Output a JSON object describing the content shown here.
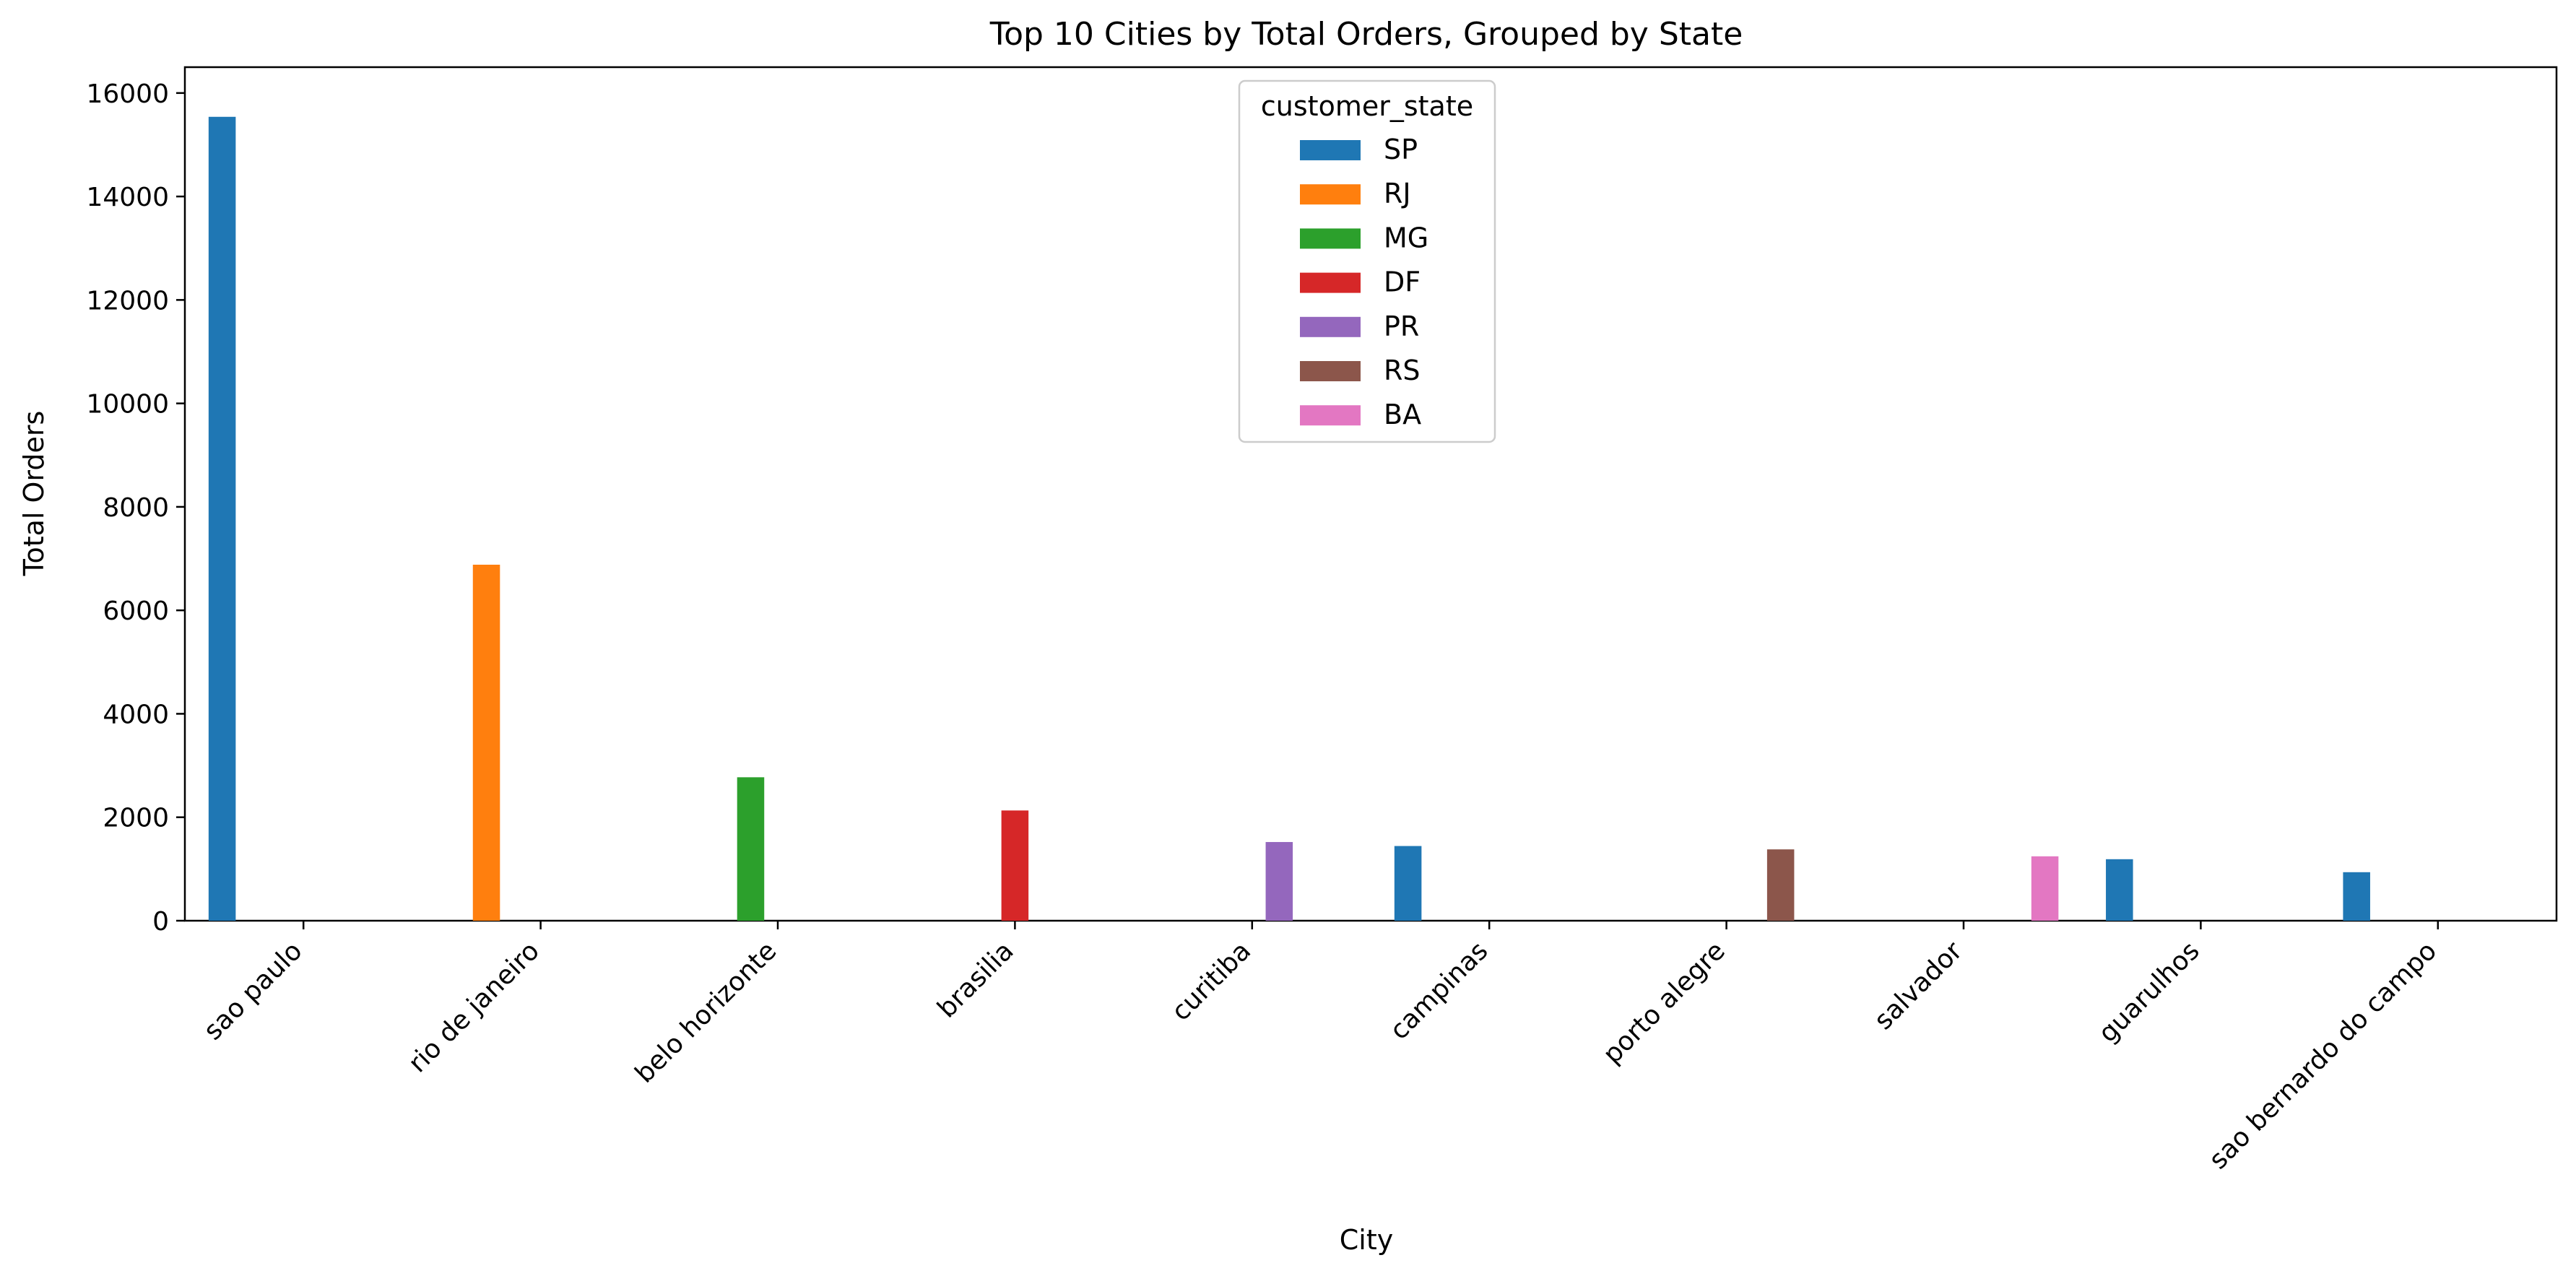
{
  "chart_data": {
    "type": "bar",
    "title": "Top 10 Cities by Total Orders, Grouped by State",
    "xlabel": "City",
    "ylabel": "Total Orders",
    "ylim": [
      0,
      16500
    ],
    "yticks": [
      0,
      2000,
      4000,
      6000,
      8000,
      10000,
      12000,
      14000,
      16000
    ],
    "grid": false,
    "categories": [
      "sao paulo",
      "rio de janeiro",
      "belo horizonte",
      "brasilia",
      "curitiba",
      "campinas",
      "porto alegre",
      "salvador",
      "guarulhos",
      "sao bernardo do campo"
    ],
    "legend": {
      "title": "customer_state",
      "placement": "upper center"
    },
    "series": [
      {
        "name": "SP",
        "color": "#1f77b4",
        "values": [
          15540,
          null,
          null,
          null,
          null,
          1444,
          null,
          null,
          1189,
          938
        ]
      },
      {
        "name": "RJ",
        "color": "#ff7f0e",
        "values": [
          null,
          6882,
          null,
          null,
          null,
          null,
          null,
          null,
          null,
          null
        ]
      },
      {
        "name": "MG",
        "color": "#2ca02c",
        "values": [
          null,
          null,
          2773,
          null,
          null,
          null,
          null,
          null,
          null,
          null
        ]
      },
      {
        "name": "DF",
        "color": "#d62728",
        "values": [
          null,
          null,
          null,
          2131,
          null,
          null,
          null,
          null,
          null,
          null
        ]
      },
      {
        "name": "PR",
        "color": "#9467bd",
        "values": [
          null,
          null,
          null,
          null,
          1521,
          null,
          null,
          null,
          null,
          null
        ]
      },
      {
        "name": "RS",
        "color": "#8c564b",
        "values": [
          null,
          null,
          null,
          null,
          null,
          null,
          1379,
          null,
          null,
          null
        ]
      },
      {
        "name": "BA",
        "color": "#e377c2",
        "values": [
          null,
          null,
          null,
          null,
          null,
          null,
          null,
          1245,
          null,
          null
        ]
      }
    ]
  }
}
